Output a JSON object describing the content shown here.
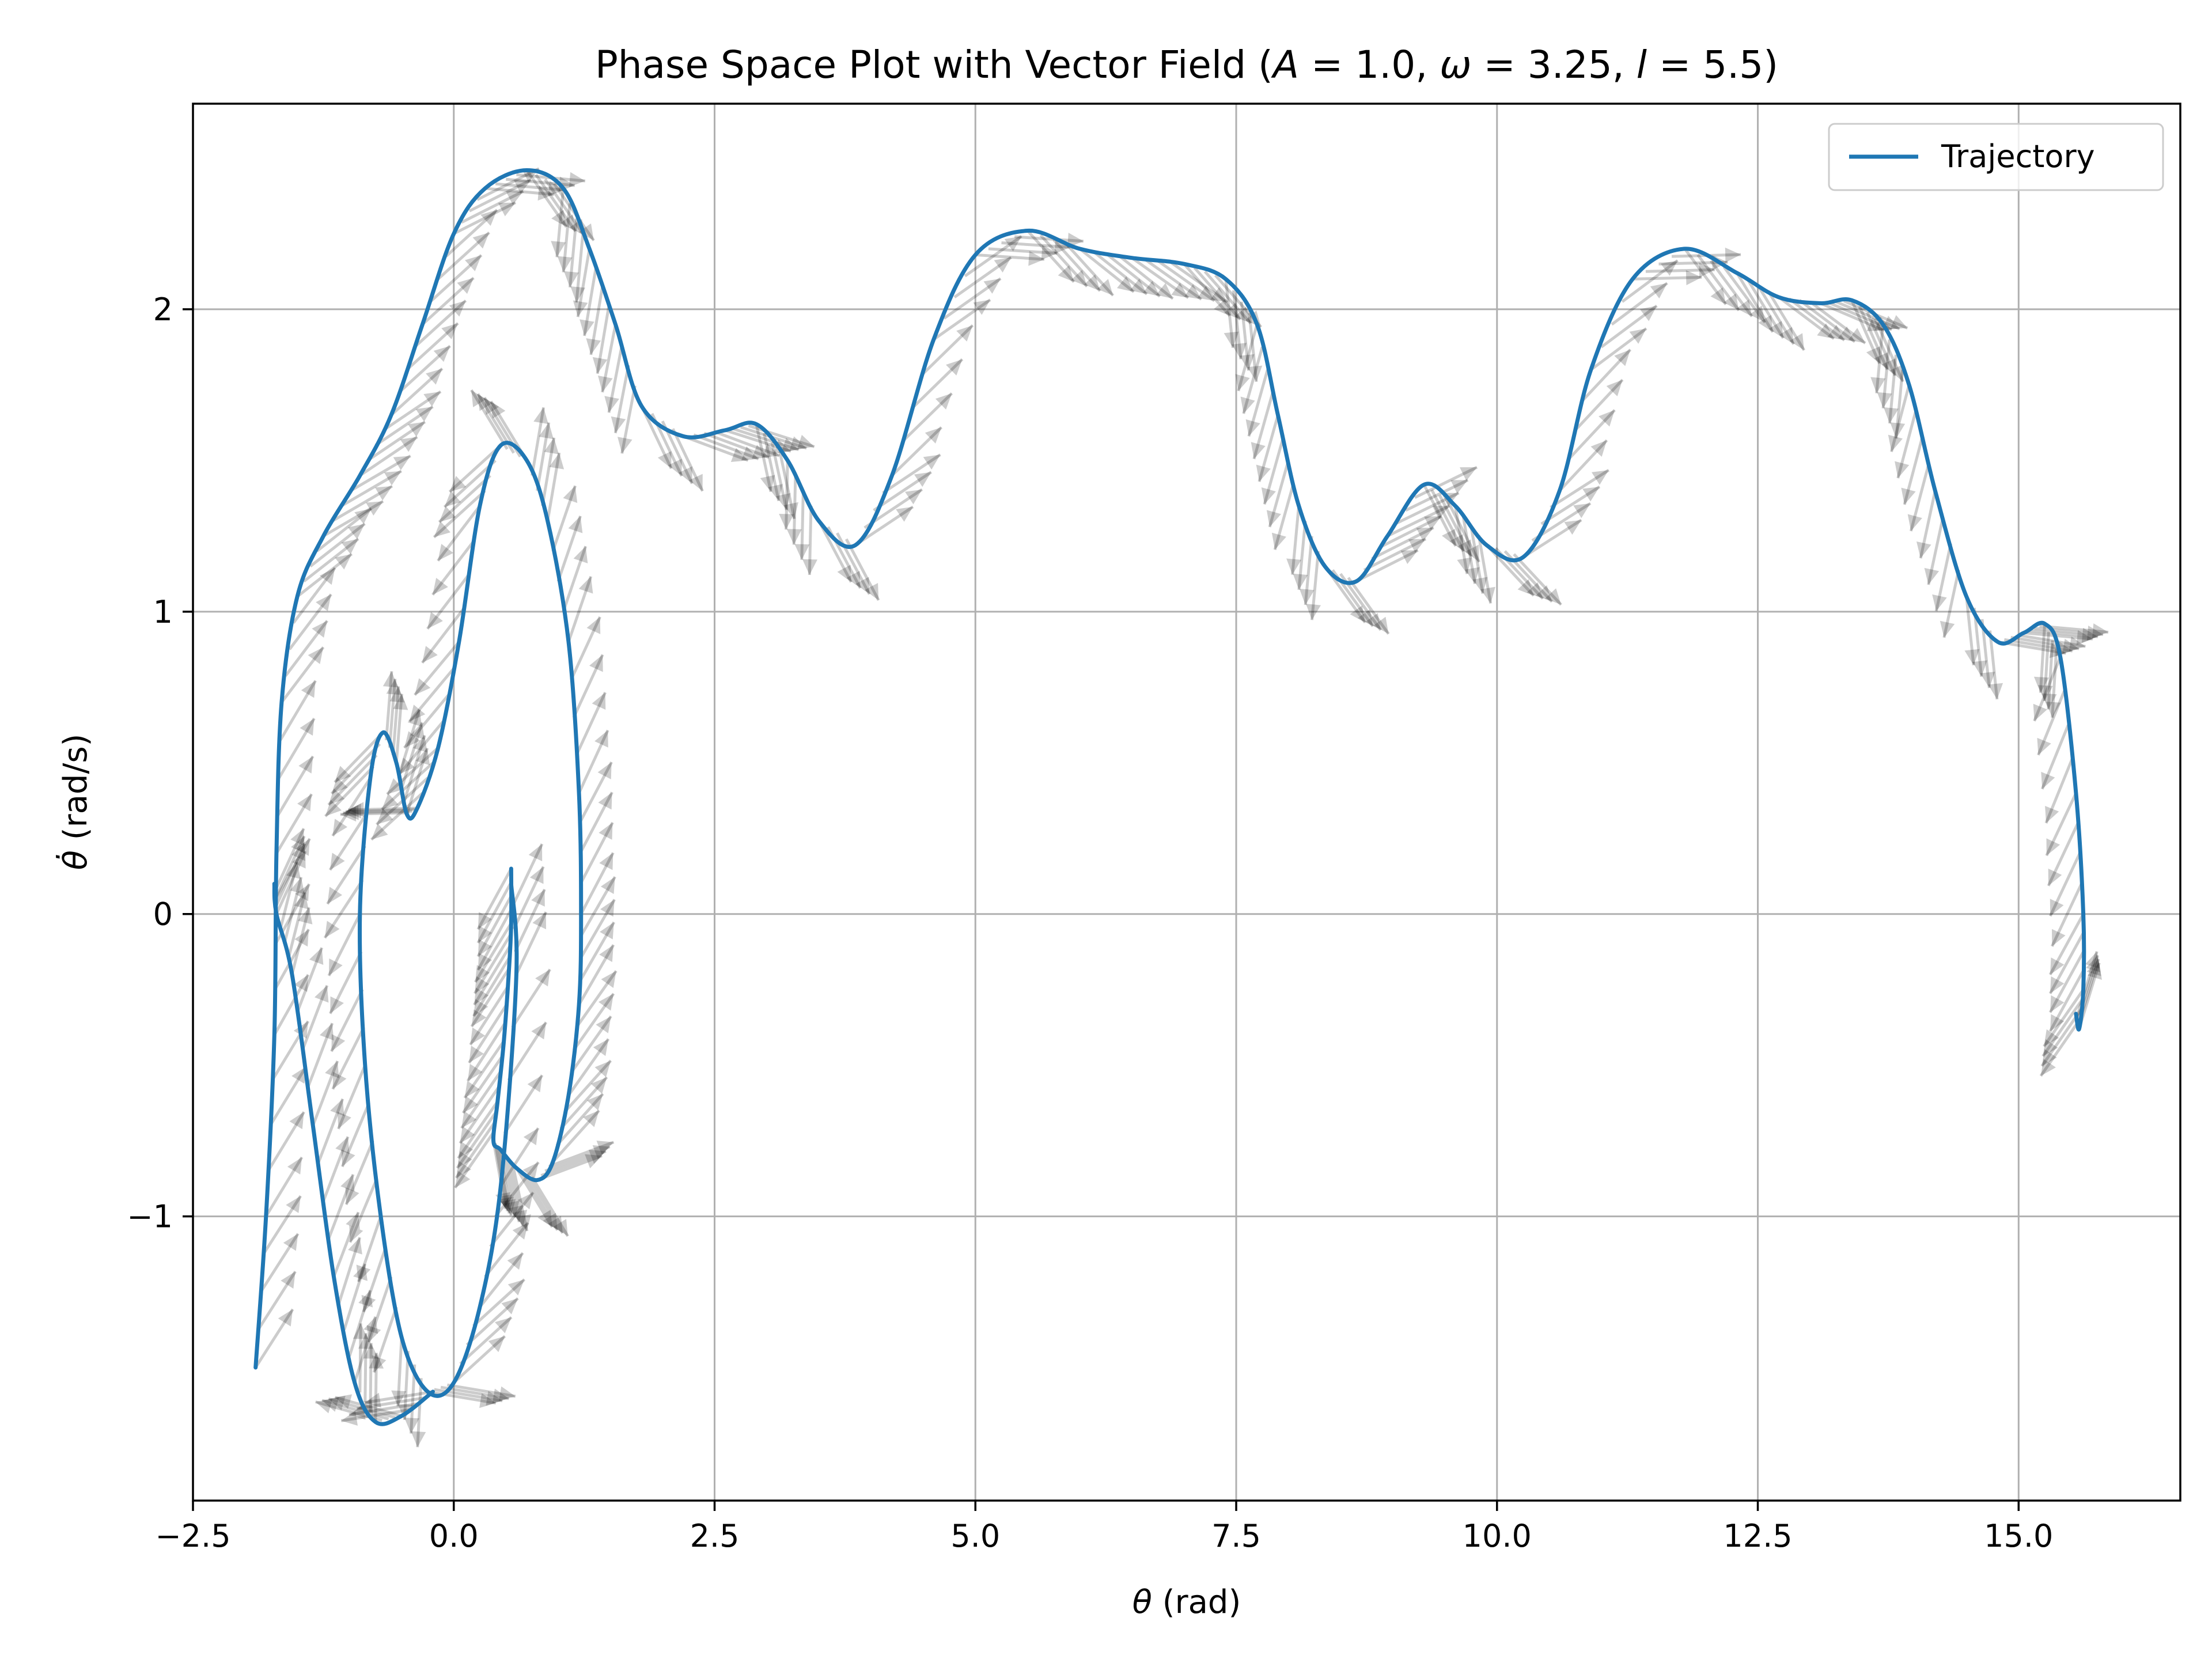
{
  "chart_data": {
    "type": "line",
    "title": "Phase Space Plot with Vector Field (A = 1.0, ω = 3.25, l = 5.5)",
    "title_parts": {
      "prefix": "Phase Space Plot with Vector Field (",
      "A": "A",
      "A_val": " = 1.0, ",
      "omega": "ω",
      "omega_val": " = 3.25, ",
      "l": "l",
      "l_val": " = 5.5)"
    },
    "xlabel": "θ (rad)",
    "xlabel_parts": {
      "sym": "θ",
      "rest": " (rad)"
    },
    "ylabel": "θ̇ (rad/s)",
    "ylabel_parts": {
      "sym": "θ̇",
      "rest": " (rad/s)"
    },
    "xlim": [
      -2.5,
      16.55
    ],
    "ylim": [
      -1.94,
      2.68
    ],
    "xticks": [
      -2.5,
      0.0,
      2.5,
      5.0,
      7.5,
      10.0,
      12.5,
      15.0
    ],
    "xtick_labels": [
      "−2.5",
      "0.0",
      "2.5",
      "5.0",
      "7.5",
      "10.0",
      "12.5",
      "15.0"
    ],
    "yticks": [
      -1,
      0,
      1,
      2
    ],
    "ytick_labels": [
      "−1",
      "0",
      "1",
      "2"
    ],
    "grid": true,
    "legend": {
      "placement": "top-right"
    },
    "series": [
      {
        "name": "Trajectory",
        "color": "#1f77b4",
        "points": [
          [
            0.55,
            0.15
          ],
          [
            0.55,
            -0.03
          ],
          [
            0.53,
            -0.18
          ],
          [
            0.48,
            -0.42
          ],
          [
            0.42,
            -0.62
          ],
          [
            0.38,
            -0.75
          ],
          [
            0.45,
            -0.78
          ],
          [
            0.6,
            -0.84
          ],
          [
            0.8,
            -0.88
          ],
          [
            0.95,
            -0.82
          ],
          [
            1.1,
            -0.6
          ],
          [
            1.2,
            -0.3
          ],
          [
            1.22,
            0.0
          ],
          [
            1.2,
            0.4
          ],
          [
            1.1,
            0.9
          ],
          [
            0.9,
            1.3
          ],
          [
            0.7,
            1.5
          ],
          [
            0.45,
            1.55
          ],
          [
            0.25,
            1.35
          ],
          [
            0.05,
            0.9
          ],
          [
            -0.15,
            0.55
          ],
          [
            -0.35,
            0.35
          ],
          [
            -0.45,
            0.33
          ],
          [
            -0.55,
            0.5
          ],
          [
            -0.68,
            0.6
          ],
          [
            -0.8,
            0.45
          ],
          [
            -0.9,
            0.0
          ],
          [
            -0.85,
            -0.5
          ],
          [
            -0.7,
            -1.0
          ],
          [
            -0.5,
            -1.4
          ],
          [
            -0.25,
            -1.58
          ],
          [
            0.0,
            -1.55
          ],
          [
            0.25,
            -1.3
          ],
          [
            0.45,
            -0.9
          ],
          [
            0.6,
            -0.2
          ],
          [
            0.55,
            0.1
          ]
        ],
        "points_b": [
          [
            -1.9,
            -1.5
          ],
          [
            -1.8,
            -1.0
          ],
          [
            -1.72,
            -0.4
          ],
          [
            -1.7,
            0.2
          ],
          [
            -1.65,
            0.7
          ],
          [
            -1.5,
            1.05
          ],
          [
            -1.25,
            1.25
          ],
          [
            -0.9,
            1.45
          ],
          [
            -0.6,
            1.65
          ],
          [
            -0.3,
            1.95
          ],
          [
            0.0,
            2.25
          ],
          [
            0.3,
            2.4
          ],
          [
            0.7,
            2.46
          ],
          [
            1.05,
            2.4
          ],
          [
            1.3,
            2.2
          ],
          [
            1.55,
            1.95
          ],
          [
            1.8,
            1.68
          ],
          [
            2.2,
            1.58
          ],
          [
            2.6,
            1.6
          ],
          [
            2.9,
            1.62
          ],
          [
            3.2,
            1.5
          ],
          [
            3.5,
            1.3
          ],
          [
            3.85,
            1.22
          ],
          [
            4.2,
            1.45
          ],
          [
            4.6,
            1.9
          ],
          [
            5.0,
            2.18
          ],
          [
            5.5,
            2.26
          ],
          [
            6.0,
            2.2
          ],
          [
            6.5,
            2.17
          ],
          [
            7.0,
            2.15
          ],
          [
            7.4,
            2.1
          ],
          [
            7.7,
            1.95
          ],
          [
            7.9,
            1.65
          ],
          [
            8.1,
            1.35
          ],
          [
            8.35,
            1.15
          ],
          [
            8.65,
            1.1
          ],
          [
            8.95,
            1.25
          ],
          [
            9.3,
            1.42
          ],
          [
            9.6,
            1.35
          ],
          [
            9.9,
            1.22
          ],
          [
            10.25,
            1.18
          ],
          [
            10.6,
            1.4
          ],
          [
            10.9,
            1.8
          ],
          [
            11.3,
            2.1
          ],
          [
            11.8,
            2.2
          ],
          [
            12.3,
            2.12
          ],
          [
            12.7,
            2.04
          ],
          [
            13.1,
            2.02
          ],
          [
            13.4,
            2.03
          ],
          [
            13.7,
            1.95
          ],
          [
            13.95,
            1.75
          ],
          [
            14.2,
            1.4
          ],
          [
            14.5,
            1.05
          ],
          [
            14.8,
            0.9
          ],
          [
            15.05,
            0.93
          ],
          [
            15.25,
            0.96
          ],
          [
            15.4,
            0.85
          ],
          [
            15.55,
            0.4
          ],
          [
            15.62,
            0.0
          ],
          [
            15.62,
            -0.25
          ],
          [
            15.58,
            -0.38
          ],
          [
            15.55,
            -0.33
          ]
        ],
        "points_c": [
          [
            -0.2,
            -1.58
          ],
          [
            -0.5,
            -1.66
          ],
          [
            -0.75,
            -1.68
          ],
          [
            -0.95,
            -1.55
          ],
          [
            -1.15,
            -1.2
          ],
          [
            -1.35,
            -0.7
          ],
          [
            -1.55,
            -0.2
          ],
          [
            -1.7,
            0.0
          ],
          [
            -1.72,
            0.1
          ]
        ]
      },
      {
        "name": "Vector Field",
        "color": "#000000"
      }
    ]
  }
}
